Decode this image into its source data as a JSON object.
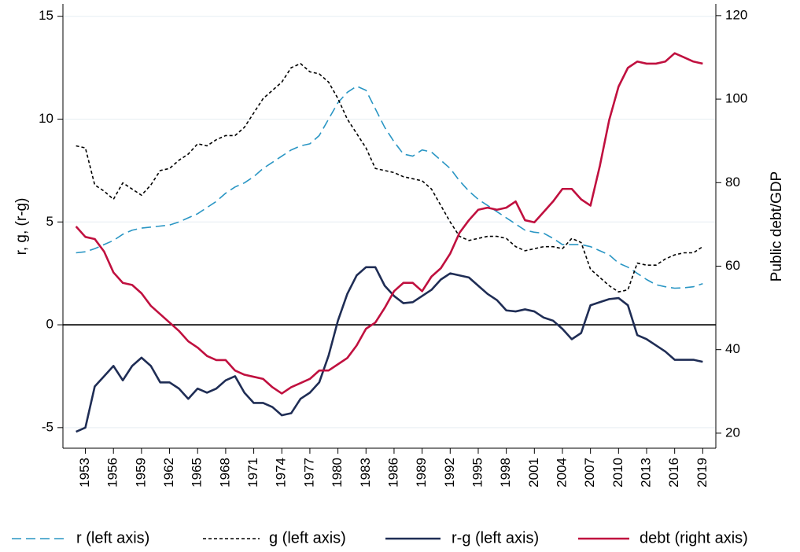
{
  "chart_data": {
    "type": "line",
    "ylabel": "r, g, (r-g)",
    "y2label": "Public debt/GDP",
    "x": [
      1952,
      1953,
      1954,
      1955,
      1956,
      1957,
      1958,
      1959,
      1960,
      1961,
      1962,
      1963,
      1964,
      1965,
      1966,
      1967,
      1968,
      1969,
      1970,
      1971,
      1972,
      1973,
      1974,
      1975,
      1976,
      1977,
      1978,
      1979,
      1980,
      1981,
      1982,
      1983,
      1984,
      1985,
      1986,
      1987,
      1988,
      1989,
      1990,
      1991,
      1992,
      1993,
      1994,
      1995,
      1996,
      1997,
      1998,
      1999,
      2000,
      2001,
      2002,
      2003,
      2004,
      2005,
      2006,
      2007,
      2008,
      2009,
      2010,
      2011,
      2012,
      2013,
      2014,
      2015,
      2016,
      2017,
      2018,
      2019
    ],
    "xlim": [
      1950.6,
      2020.4
    ],
    "xticks": [
      1953,
      1956,
      1959,
      1962,
      1965,
      1968,
      1971,
      1974,
      1977,
      1980,
      1983,
      1986,
      1989,
      1992,
      1995,
      1998,
      2001,
      2004,
      2007,
      2010,
      2013,
      2016,
      2019
    ],
    "ylim": [
      -6,
      15.6
    ],
    "yticks": [
      -5,
      0,
      5,
      10,
      15
    ],
    "y2lim": [
      16.4,
      122.8
    ],
    "y2ticks": [
      20,
      40,
      60,
      80,
      100,
      120
    ],
    "grid": true,
    "reference_line": 0,
    "legend": "bottom",
    "series": [
      {
        "name": "r (left axis)",
        "color": "#2a96c4",
        "style": "dashed",
        "values": [
          3.5,
          3.55,
          3.7,
          3.9,
          4.1,
          4.4,
          4.6,
          4.7,
          4.75,
          4.8,
          4.85,
          5.0,
          5.2,
          5.4,
          5.7,
          6.0,
          6.4,
          6.7,
          6.9,
          7.2,
          7.6,
          7.9,
          8.2,
          8.5,
          8.7,
          8.8,
          9.2,
          10.0,
          10.8,
          11.3,
          11.6,
          11.4,
          10.5,
          9.6,
          8.9,
          8.3,
          8.2,
          8.5,
          8.4,
          8.0,
          7.6,
          7.0,
          6.5,
          6.1,
          5.8,
          5.5,
          5.2,
          4.9,
          4.6,
          4.5,
          4.45,
          4.2,
          3.9,
          3.9,
          3.9,
          3.8,
          3.6,
          3.4,
          3.0,
          2.8,
          2.5,
          2.2,
          1.95,
          1.85,
          1.78,
          1.8,
          1.85,
          2.0
        ]
      },
      {
        "name": "g (left axis)",
        "color": "#000000",
        "style": "dotted",
        "values": [
          8.7,
          8.6,
          6.8,
          6.5,
          6.1,
          6.9,
          6.6,
          6.3,
          6.8,
          7.5,
          7.6,
          8.0,
          8.3,
          8.8,
          8.7,
          9.0,
          9.2,
          9.2,
          9.6,
          10.3,
          11.0,
          11.4,
          11.8,
          12.5,
          12.7,
          12.3,
          12.2,
          11.8,
          11.0,
          10.0,
          9.3,
          8.6,
          7.6,
          7.5,
          7.4,
          7.2,
          7.1,
          7.0,
          6.6,
          5.8,
          5.0,
          4.3,
          4.1,
          4.2,
          4.3,
          4.3,
          4.2,
          3.8,
          3.6,
          3.7,
          3.8,
          3.8,
          3.7,
          4.2,
          4.0,
          2.7,
          2.3,
          1.9,
          1.6,
          1.7,
          3.0,
          2.9,
          2.9,
          3.2,
          3.4,
          3.5,
          3.5,
          3.8
        ]
      },
      {
        "name": "r-g (left axis)",
        "color": "#1f2d55",
        "style": "solid",
        "values": [
          -5.2,
          -5.0,
          -3.0,
          -2.5,
          -2.0,
          -2.7,
          -2.0,
          -1.6,
          -2.0,
          -2.8,
          -2.8,
          -3.1,
          -3.6,
          -3.1,
          -3.3,
          -3.1,
          -2.7,
          -2.5,
          -3.3,
          -3.8,
          -3.8,
          -4.0,
          -4.4,
          -4.3,
          -3.6,
          -3.3,
          -2.8,
          -1.5,
          0.2,
          1.5,
          2.4,
          2.8,
          2.8,
          1.9,
          1.4,
          1.05,
          1.1,
          1.4,
          1.7,
          2.2,
          2.5,
          2.4,
          2.3,
          1.9,
          1.5,
          1.2,
          0.7,
          0.65,
          0.75,
          0.65,
          0.35,
          0.2,
          -0.2,
          -0.7,
          -0.4,
          0.95,
          1.1,
          1.25,
          1.3,
          0.95,
          -0.5,
          -0.7,
          -1.0,
          -1.3,
          -1.7,
          -1.7,
          -1.7,
          -1.8
        ]
      },
      {
        "name": "debt (right axis)",
        "color": "#c0103f",
        "style": "solid",
        "axis": "y2",
        "values": [
          69.5,
          67,
          66.5,
          63.5,
          58.5,
          56,
          55.5,
          53.5,
          50.5,
          48.5,
          46.5,
          44.5,
          42,
          40.5,
          38.5,
          37.5,
          37.5,
          35,
          34,
          33.5,
          33,
          31,
          29.5,
          31,
          32,
          33,
          35,
          35,
          36.5,
          38,
          41,
          45,
          46.5,
          50,
          54,
          56,
          56,
          54,
          57.5,
          59.5,
          63,
          68,
          71,
          73.5,
          74,
          73.5,
          74,
          75.5,
          71,
          70.5,
          73,
          75.5,
          78.5,
          78.5,
          76,
          74.5,
          84,
          95,
          103,
          107.5,
          109,
          108.5,
          108.5,
          109,
          111,
          110,
          109,
          108.5
        ]
      }
    ]
  }
}
